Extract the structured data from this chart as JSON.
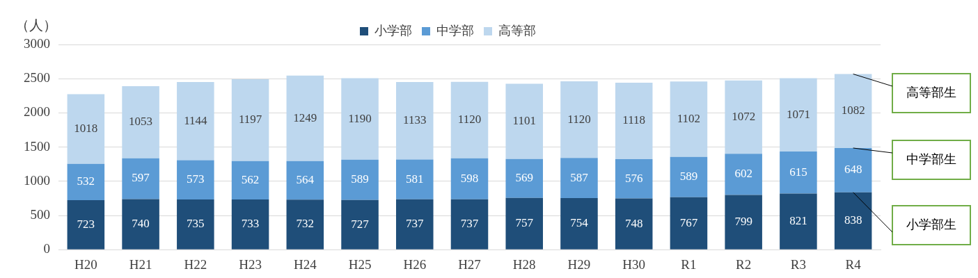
{
  "chart_data": {
    "type": "bar",
    "stacked": true,
    "ylabel": "（人）",
    "categories": [
      "H20",
      "H21",
      "H22",
      "H23",
      "H24",
      "H25",
      "H26",
      "H27",
      "H28",
      "H29",
      "H30",
      "R1",
      "R2",
      "R3",
      "R4"
    ],
    "series": [
      {
        "name": "小学部",
        "color": "#1f4e79",
        "values": [
          723,
          740,
          735,
          733,
          732,
          727,
          737,
          737,
          757,
          754,
          748,
          767,
          799,
          821,
          838
        ]
      },
      {
        "name": "中学部",
        "color": "#5b9bd5",
        "values": [
          532,
          597,
          573,
          562,
          564,
          589,
          581,
          598,
          569,
          587,
          576,
          589,
          602,
          615,
          648
        ]
      },
      {
        "name": "高等部",
        "color": "#bdd7ee",
        "values": [
          1018,
          1053,
          1144,
          1197,
          1249,
          1190,
          1133,
          1120,
          1101,
          1120,
          1118,
          1102,
          1072,
          1071,
          1082
        ]
      }
    ],
    "ylim": [
      0,
      3000
    ],
    "yticks": [
      0,
      500,
      1000,
      1500,
      2000,
      2500,
      3000
    ],
    "grid": "y",
    "legend": "top",
    "data_labels": true,
    "annotations": [
      {
        "text": "高等部生",
        "x": "R4",
        "y": 2568
      },
      {
        "text": "中学部生",
        "x": "R4",
        "y": 1486
      },
      {
        "text": "小学部生",
        "x": "R4",
        "y": 838
      }
    ]
  }
}
